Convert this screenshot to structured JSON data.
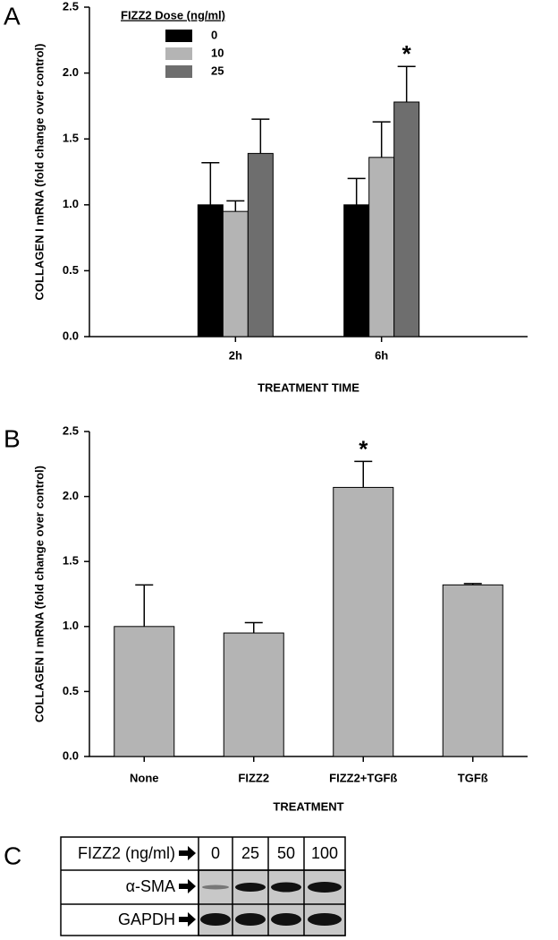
{
  "chart_data": [
    {
      "type": "bar",
      "panel_label": "A",
      "y_label": "COLLAGEN I mRNA (fold change over control)",
      "x_label": "TREATMENT TIME",
      "legend_title": "FIZZ2 Dose (ng/ml)",
      "categories": [
        "2h",
        "6h"
      ],
      "series": [
        {
          "name": "0",
          "color": "#000000",
          "values": [
            1.0,
            1.0
          ],
          "errors": [
            0.32,
            0.2
          ]
        },
        {
          "name": "10",
          "color": "#b4b4b4",
          "values": [
            0.95,
            1.36
          ],
          "errors": [
            0.08,
            0.27
          ]
        },
        {
          "name": "25",
          "color": "#6e6e6e",
          "values": [
            1.39,
            1.78
          ],
          "errors": [
            0.26,
            0.27
          ]
        }
      ],
      "annotations": [
        "*"
      ],
      "ylim": [
        0,
        2.5
      ],
      "yticks": [
        {
          "value": 0,
          "label": "0.0"
        },
        0.5,
        {
          "value": 1,
          "label": "1.0"
        },
        1.5,
        {
          "value": 2,
          "label": "2.0"
        },
        2.5
      ]
    },
    {
      "type": "bar",
      "panel_label": "B",
      "y_label": "COLLAGEN I mRNA (fold change over control)",
      "x_label": "TREATMENT",
      "categories": [
        "None",
        "FIZZ2",
        "FIZZ2+TGFß",
        "TGFß"
      ],
      "values": [
        1.0,
        0.95,
        2.07,
        1.32
      ],
      "errors": [
        0.32,
        0.08,
        0.2,
        0.01
      ],
      "color": "#b4b4b4",
      "annotations": [
        "*"
      ],
      "ylim": [
        0,
        2.5
      ],
      "yticks": [
        {
          "value": 0,
          "label": "0.0"
        },
        0.5,
        {
          "value": 1,
          "label": "1.0"
        },
        1.5,
        {
          "value": 2,
          "label": "2.0"
        },
        2.5
      ]
    }
  ],
  "blot": {
    "panel_label": "C",
    "header_label": "FIZZ2 (ng/ml)",
    "doses": [
      "0",
      "25",
      "50",
      "100"
    ],
    "rows": [
      "α-SMA",
      "GAPDH"
    ]
  }
}
